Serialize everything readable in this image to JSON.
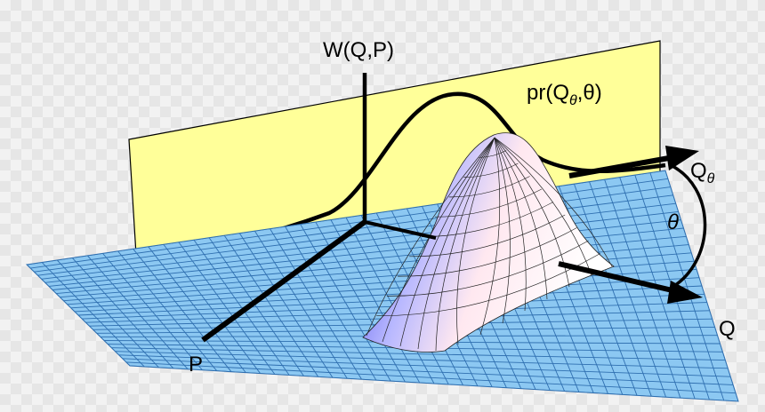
{
  "labels": {
    "w_axis": "W(Q,P)",
    "p_axis": "P",
    "q_axis": "Q",
    "q_theta_main": "Q",
    "q_theta_sub": "θ",
    "theta": "θ",
    "projection_prefix": "pr(Q",
    "projection_sub": "θ",
    "projection_suffix": ",θ)"
  },
  "colors": {
    "plane": "#ffff99",
    "grid_fill": "#8cc8f2",
    "grid_line": "#2f6fb0",
    "surface_peak": "#ffe6ee",
    "surface_side": "#5c5cf0",
    "stroke": "#000000"
  }
}
